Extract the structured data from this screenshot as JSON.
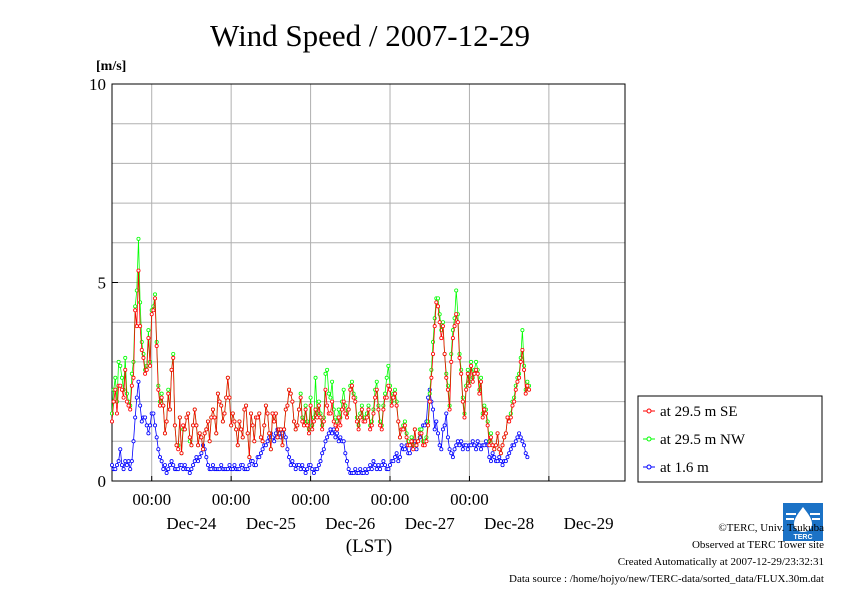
{
  "chart_data": {
    "type": "line",
    "title": "Wind Speed / 2007-12-29",
    "ylabel": "[m/s]",
    "xlabel": "(LST)",
    "ylim": [
      0,
      10
    ],
    "yticks": [
      "0",
      "5",
      "10"
    ],
    "xlim": [
      "2007-12-23T12:00",
      "2007-12-29T23:00"
    ],
    "xtick_time_labels": [
      "00:00",
      "00:00",
      "00:00",
      "00:00",
      "00:00"
    ],
    "xtick_date_labels": [
      "Dec-24",
      "Dec-25",
      "Dec-26",
      "Dec-27",
      "Dec-28",
      "Dec-29"
    ],
    "grid": true,
    "legend_position": "right",
    "time_step_hours": 0.5,
    "series": [
      {
        "name": "at 29.5 m SE",
        "color": "#ff0000",
        "values": [
          1.5,
          2.0,
          2.3,
          1.7,
          2.4,
          2.4,
          2.3,
          2.1,
          2.8,
          2.0,
          1.9,
          1.8,
          2.4,
          2.6,
          4.3,
          3.9,
          5.3,
          3.9,
          3.3,
          3.1,
          2.7,
          2.8,
          3.6,
          2.9,
          4.2,
          4.3,
          4.6,
          3.4,
          2.3,
          1.9,
          2.1,
          1.9,
          1.2,
          1.5,
          2.2,
          1.8,
          2.8,
          3.1,
          1.4,
          0.9,
          0.8,
          1.6,
          0.7,
          1.4,
          1.3,
          1.6,
          1.7,
          1.1,
          0.9,
          1.4,
          1.8,
          1.4,
          0.9,
          1.2,
          1.1,
          0.8,
          1.2,
          1.3,
          1.5,
          1.0,
          1.6,
          1.8,
          1.6,
          1.2,
          2.2,
          2.0,
          1.9,
          1.5,
          1.7,
          2.1,
          2.6,
          2.1,
          1.4,
          1.7,
          1.5,
          1.3,
          0.9,
          1.5,
          1.3,
          1.1,
          1.8,
          1.9,
          1.2,
          0.6,
          1.7,
          1.4,
          1.0,
          1.6,
          1.6,
          1.7,
          1.1,
          1.0,
          1.4,
          1.9,
          1.7,
          1.2,
          0.8,
          1.7,
          1.5,
          1.7,
          1.1,
          1.3,
          1.3,
          0.9,
          1.3,
          1.8,
          1.9,
          2.3,
          2.2,
          2.0,
          1.5,
          1.3,
          1.4,
          1.8,
          2.1,
          1.5,
          1.4,
          1.8,
          1.4,
          1.2,
          1.9,
          1.3,
          1.5,
          1.8,
          1.6,
          1.9,
          1.6,
          1.3,
          1.5,
          2.3,
          1.9,
          1.7,
          1.7,
          2.0,
          1.5,
          1.4,
          1.3,
          1.6,
          1.4,
          1.8,
          2.0,
          1.7,
          1.6,
          1.8,
          2.3,
          2.4,
          2.1,
          2.0,
          1.5,
          1.3,
          1.6,
          1.8,
          1.5,
          1.5,
          1.6,
          1.8,
          1.3,
          1.4,
          1.7,
          2.1,
          2.3,
          1.8,
          1.4,
          1.3,
          1.8,
          2.1,
          2.1,
          2.4,
          2.3,
          1.9,
          2.1,
          2.2,
          1.9,
          1.5,
          1.1,
          1.3,
          1.3,
          1.4,
          1.1,
          0.9,
          0.9,
          1.0,
          0.8,
          1.3,
          0.9,
          1.0,
          1.2,
          1.2,
          0.9,
          0.9,
          1.0,
          1.4,
          2.0,
          2.6,
          3.2,
          3.9,
          4.5,
          4.4,
          4.0,
          3.6,
          3.9,
          3.2,
          2.6,
          2.3,
          1.8,
          3.0,
          3.6,
          3.9,
          4.2,
          4.0,
          3.1,
          2.7,
          2.0,
          1.6,
          2.3,
          2.7,
          2.4,
          2.9,
          2.5,
          2.7,
          2.8,
          2.7,
          2.2,
          2.5,
          1.6,
          1.8,
          1.7,
          1.4,
          0.9,
          1.1,
          0.9,
          0.8,
          0.9,
          1.2,
          0.8,
          0.7,
          0.9,
          1.1,
          1.2,
          1.6,
          1.5,
          1.6,
          1.9,
          2.0,
          2.3,
          2.5,
          2.6,
          3.0,
          3.3,
          2.8,
          2.2,
          2.4,
          2.3
        ]
      },
      {
        "name": "at 29.5 m NW",
        "color": "#00ff00",
        "values": [
          1.7,
          2.3,
          2.6,
          2.0,
          3.0,
          2.9,
          2.6,
          2.3,
          3.1,
          2.2,
          2.0,
          1.9,
          2.7,
          3.0,
          4.4,
          4.8,
          6.1,
          4.5,
          3.5,
          3.2,
          2.8,
          2.9,
          3.8,
          3.0,
          4.3,
          4.4,
          4.7,
          3.5,
          2.4,
          2.0,
          2.2,
          1.9,
          1.2,
          1.5,
          2.3,
          1.8,
          2.8,
          3.2,
          1.4,
          0.9,
          0.9,
          1.6,
          0.7,
          1.3,
          1.3,
          1.6,
          1.7,
          1.0,
          0.9,
          1.4,
          1.8,
          1.4,
          0.9,
          1.2,
          1.1,
          0.8,
          1.2,
          1.3,
          1.5,
          1.0,
          1.6,
          1.8,
          1.6,
          1.2,
          2.2,
          2.0,
          1.9,
          1.5,
          1.7,
          2.1,
          2.6,
          2.1,
          1.4,
          1.7,
          1.5,
          1.3,
          0.9,
          1.5,
          1.3,
          1.1,
          1.8,
          1.9,
          1.2,
          0.6,
          1.7,
          1.4,
          1.0,
          1.6,
          1.6,
          1.7,
          1.1,
          1.0,
          1.4,
          1.9,
          1.7,
          1.2,
          0.8,
          1.7,
          1.5,
          1.7,
          1.1,
          1.3,
          1.3,
          0.9,
          1.3,
          1.8,
          1.9,
          2.3,
          2.2,
          2.0,
          1.5,
          1.3,
          1.4,
          1.8,
          2.2,
          1.6,
          1.5,
          1.9,
          1.5,
          1.3,
          2.1,
          1.4,
          1.6,
          2.6,
          1.7,
          2.0,
          1.7,
          1.4,
          1.6,
          2.7,
          2.8,
          2.2,
          2.1,
          2.5,
          1.8,
          1.6,
          1.5,
          1.8,
          1.6,
          2.0,
          2.3,
          1.9,
          1.7,
          1.8,
          2.4,
          2.5,
          2.2,
          2.1,
          1.6,
          1.4,
          1.7,
          1.9,
          1.6,
          1.6,
          1.7,
          1.9,
          1.4,
          1.5,
          1.8,
          2.3,
          2.5,
          1.9,
          1.5,
          1.4,
          1.9,
          2.2,
          2.6,
          2.9,
          2.4,
          2.0,
          2.2,
          2.3,
          2.0,
          1.5,
          1.1,
          1.3,
          1.4,
          1.5,
          1.2,
          1.0,
          0.9,
          1.1,
          0.9,
          1.3,
          0.9,
          1.0,
          1.3,
          1.3,
          1.0,
          1.0,
          1.1,
          1.5,
          2.2,
          2.8,
          3.5,
          4.1,
          4.6,
          4.6,
          4.2,
          3.8,
          4.0,
          3.2,
          2.7,
          2.4,
          1.9,
          3.2,
          3.8,
          4.1,
          4.8,
          4.2,
          3.2,
          2.8,
          2.1,
          1.7,
          2.4,
          2.8,
          2.5,
          3.0,
          2.6,
          2.8,
          3.0,
          2.8,
          2.3,
          2.6,
          1.7,
          1.9,
          1.8,
          1.5,
          1.0,
          1.2,
          0.9,
          0.8,
          0.9,
          1.2,
          0.8,
          0.7,
          0.9,
          1.1,
          1.2,
          1.6,
          1.6,
          1.7,
          2.0,
          2.1,
          2.4,
          2.6,
          2.7,
          3.1,
          3.8,
          2.9,
          2.3,
          2.5,
          2.4
        ]
      },
      {
        "name": "at 1.6 m",
        "color": "#0000ff",
        "values": [
          0.4,
          0.3,
          0.3,
          0.4,
          0.5,
          0.8,
          0.4,
          0.3,
          0.5,
          0.4,
          0.5,
          0.3,
          0.5,
          1.0,
          1.6,
          2.1,
          2.5,
          1.9,
          1.5,
          1.6,
          1.6,
          1.4,
          1.2,
          1.4,
          1.7,
          1.7,
          1.4,
          1.1,
          0.8,
          0.6,
          0.5,
          0.3,
          0.4,
          0.2,
          0.3,
          0.4,
          0.5,
          0.4,
          0.3,
          0.3,
          0.3,
          0.4,
          0.4,
          0.3,
          0.4,
          0.3,
          0.3,
          0.2,
          0.3,
          0.4,
          0.5,
          0.6,
          0.5,
          0.6,
          0.7,
          0.9,
          0.8,
          0.6,
          0.4,
          0.3,
          0.3,
          0.4,
          0.3,
          0.3,
          0.3,
          0.3,
          0.4,
          0.3,
          0.3,
          0.3,
          0.3,
          0.4,
          0.3,
          0.3,
          0.4,
          0.3,
          0.3,
          0.3,
          0.4,
          0.4,
          0.3,
          0.3,
          0.3,
          0.4,
          0.5,
          0.5,
          0.4,
          0.4,
          0.6,
          0.6,
          0.7,
          0.8,
          0.9,
          0.9,
          1.0,
          1.1,
          1.2,
          1.1,
          1.0,
          1.2,
          1.3,
          1.2,
          1.1,
          1.2,
          1.3,
          1.1,
          0.8,
          0.6,
          0.4,
          0.5,
          0.4,
          0.3,
          0.4,
          0.4,
          0.3,
          0.4,
          0.3,
          0.2,
          0.3,
          0.4,
          0.4,
          0.3,
          0.2,
          0.3,
          0.3,
          0.4,
          0.5,
          0.7,
          0.8,
          1.0,
          1.1,
          1.2,
          1.3,
          1.2,
          1.3,
          1.1,
          1.2,
          1.0,
          1.1,
          1.0,
          1.0,
          0.7,
          0.5,
          0.3,
          0.2,
          0.2,
          0.2,
          0.3,
          0.2,
          0.2,
          0.3,
          0.2,
          0.2,
          0.3,
          0.2,
          0.3,
          0.4,
          0.3,
          0.5,
          0.4,
          0.3,
          0.4,
          0.3,
          0.4,
          0.5,
          0.4,
          0.3,
          0.3,
          0.4,
          0.5,
          0.5,
          0.6,
          0.7,
          0.5,
          0.6,
          0.9,
          0.8,
          0.8,
          0.9,
          0.7,
          0.7,
          0.9,
          1.0,
          1.0,
          0.8,
          1.0,
          1.1,
          1.3,
          1.4,
          1.4,
          1.5,
          2.1,
          2.3,
          2.0,
          1.8,
          1.3,
          1.5,
          1.2,
          0.9,
          0.8,
          1.3,
          1.4,
          1.7,
          1.1,
          0.8,
          0.7,
          0.6,
          0.8,
          0.9,
          1.0,
          0.9,
          1.0,
          0.8,
          0.9,
          0.9,
          0.8,
          0.9,
          0.9,
          1.0,
          0.9,
          0.8,
          1.0,
          0.9,
          0.8,
          0.9,
          0.9,
          1.0,
          0.9,
          0.6,
          0.5,
          0.7,
          0.6,
          0.5,
          0.5,
          0.6,
          0.5,
          0.4,
          0.5,
          0.5,
          0.6,
          0.7,
          0.8,
          0.9,
          0.9,
          1.0,
          1.1,
          1.2,
          1.1,
          1.0,
          0.9,
          0.7,
          0.6
        ]
      }
    ]
  },
  "credits": {
    "copyright": "©TERC, Univ. Tsukuba",
    "observed": "Observed at TERC Tower site",
    "created": "Created Automatically at 2007-12-29/23:32:31",
    "source": "Data source : /home/hojyo/new/TERC-data/sorted_data/FLUX.30m.dat",
    "logo_text": "TERC"
  }
}
